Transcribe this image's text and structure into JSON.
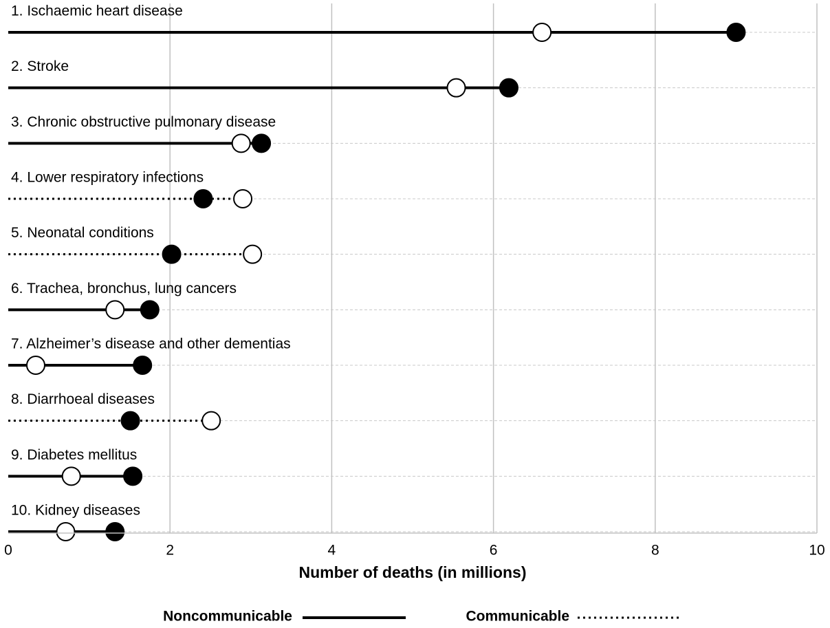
{
  "chart_data": {
    "type": "dumbbell",
    "categories": [
      "1. Ischaemic heart disease",
      "2. Stroke",
      "3. Chronic obstructive pulmonary disease",
      "4. Lower respiratory infections",
      "5. Neonatal conditions",
      "6. Trachea, bronchus, lung cancers",
      "7. Alzheimer’s disease and other dementias",
      "8. Diarrhoeal diseases",
      "9. Diabetes mellitus",
      "10. Kidney diseases"
    ],
    "series": [
      {
        "color": "#ffffff",
        "values": [
          6.6,
          5.54,
          2.88,
          2.9,
          3.02,
          1.32,
          0.34,
          2.51,
          0.78,
          0.71
        ]
      },
      {
        "color": "#000000",
        "values": [
          9.0,
          6.19,
          3.13,
          2.41,
          2.02,
          1.75,
          1.66,
          1.51,
          1.54,
          1.32
        ]
      }
    ],
    "groups": [
      {
        "name": "Noncommunicable",
        "style": "solid"
      },
      {
        "name": "Communicable",
        "style": "dotted"
      }
    ],
    "category_group": [
      0,
      0,
      0,
      1,
      1,
      0,
      0,
      1,
      0,
      0
    ],
    "xlabel": "Number of deaths (in millions)",
    "xlim": [
      0,
      10
    ],
    "xticks": [
      0,
      2,
      4,
      6,
      8,
      10
    ],
    "grid": true
  }
}
